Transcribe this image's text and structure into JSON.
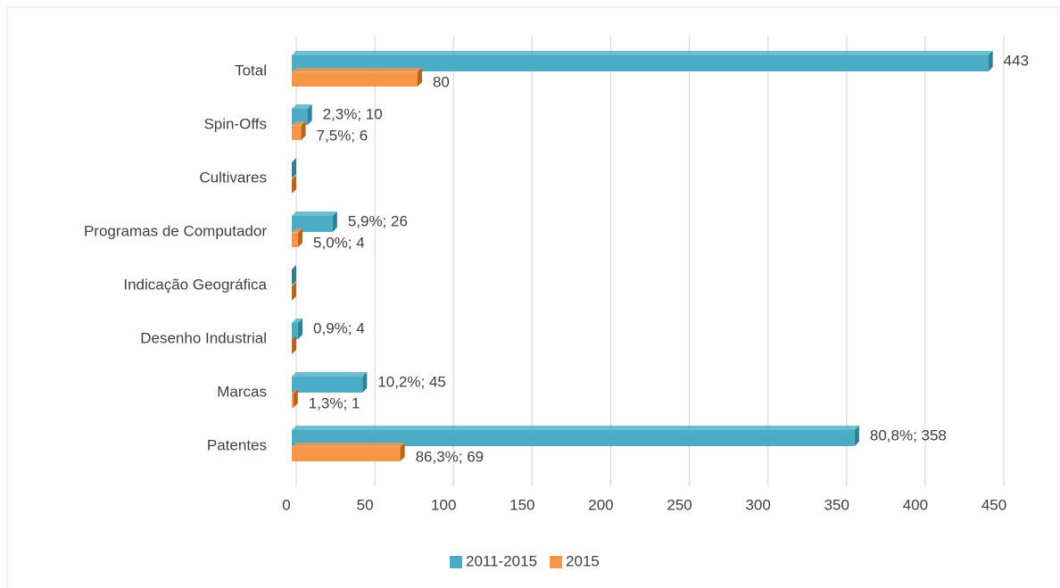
{
  "chart_data": {
    "type": "barh",
    "categories": [
      "Total",
      "Spin-Offs",
      "Cultivares",
      "Programas de Computador",
      "Indicação Geográfica",
      "Desenho Industrial",
      "Marcas",
      "Patentes"
    ],
    "series": [
      {
        "name": "2011-2015",
        "color": "#4bacc6",
        "side_color": "#2f7f95",
        "values": [
          443,
          10,
          0,
          26,
          0,
          4,
          45,
          358
        ],
        "value_labels": [
          "443",
          "2,3%; 10",
          null,
          "5,9%; 26",
          null,
          "0,9%; 4",
          "10,2%; 45",
          "80,8%; 358"
        ]
      },
      {
        "name": "2015",
        "color": "#f79646",
        "side_color": "#b8631f",
        "values": [
          80,
          6,
          0,
          4,
          0,
          0,
          1,
          69
        ],
        "value_labels": [
          "80",
          "7,5%; 6",
          null,
          "5,0%; 4",
          null,
          null,
          "1,3%; 1",
          "86,3%; 69"
        ]
      }
    ],
    "xlim": [
      0,
      450
    ],
    "xticks": [
      0,
      50,
      100,
      150,
      200,
      250,
      300,
      350,
      400,
      450
    ],
    "grid": true,
    "legend": "bottom"
  }
}
